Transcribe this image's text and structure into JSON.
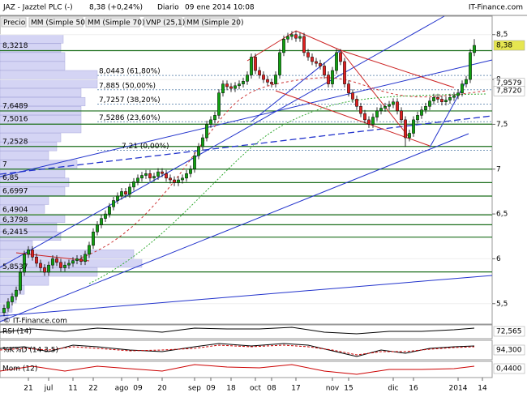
{
  "header": {
    "symbol": "JAZ - Jazztel PLC (-)",
    "quote": "8,38 (+0,24%)",
    "period": "Diario",
    "datetime": "09 ene 2014 10:08",
    "brand": "IT-Finance.com"
  },
  "legend": [
    {
      "name": "Precio",
      "color": "#555555"
    },
    {
      "name": "MM (Simple 50)",
      "color": "#555555"
    },
    {
      "name": "MM (Simple 70)",
      "color": "#2222cc"
    },
    {
      "name": "VNP (25,1)",
      "color": "#8888aa"
    },
    {
      "name": "MM (Simple 20)",
      "color": "#cc0000"
    }
  ],
  "watermark": "© IT-Finance.com",
  "chart_data": {
    "type": "candlestick",
    "categories": [
      null,
      null,
      null,
      null,
      null,
      null,
      "21",
      null,
      null,
      null,
      null,
      "jul",
      null,
      null,
      null,
      null,
      null,
      "11",
      null,
      null,
      null,
      null,
      "22",
      null,
      null,
      null,
      null,
      null,
      null,
      "ago",
      null,
      null,
      null,
      "09",
      null,
      null,
      null,
      null,
      null,
      "20",
      null,
      null,
      null,
      null,
      null,
      null,
      null,
      "sep",
      null,
      null,
      null,
      "09",
      null,
      null,
      null,
      null,
      "18",
      null,
      null,
      null,
      null,
      null,
      "oct",
      null,
      null,
      null,
      "08",
      null,
      null,
      null,
      null,
      null,
      "17",
      null,
      null,
      null,
      null,
      null,
      null,
      null,
      null,
      "nov",
      null,
      null,
      null,
      "15",
      null,
      null,
      null,
      null,
      null,
      null,
      null,
      null,
      null,
      null,
      "dic",
      null,
      null,
      null,
      null,
      "16",
      null,
      null,
      null,
      null,
      null,
      null,
      null,
      null,
      null,
      null,
      "2014",
      null,
      null,
      null,
      null,
      null,
      "14"
    ],
    "open": [
      5.4,
      5.45,
      5.52,
      5.58,
      5.65,
      5.85,
      6.05,
      6.1,
      6.02,
      5.95,
      5.9,
      5.85,
      5.93,
      6.0,
      5.96,
      5.9,
      5.93,
      5.95,
      5.98,
      6.0,
      5.97,
      6.05,
      6.15,
      6.3,
      6.38,
      6.45,
      6.5,
      6.58,
      6.65,
      6.7,
      6.75,
      6.72,
      6.8,
      6.86,
      6.9,
      6.93,
      6.95,
      6.9,
      6.92,
      6.97,
      6.95,
      6.9,
      6.88,
      6.85,
      6.88,
      6.9,
      6.95,
      7.0,
      7.15,
      7.25,
      7.35,
      7.5,
      7.55,
      7.6,
      7.85,
      7.95,
      7.92,
      7.9,
      7.93,
      7.95,
      7.98,
      8.05,
      8.25,
      8.1,
      8.05,
      8.0,
      7.97,
      7.95,
      8.05,
      8.3,
      8.45,
      8.48,
      8.5,
      8.46,
      8.48,
      8.3,
      8.25,
      8.2,
      8.18,
      8.15,
      8.05,
      7.95,
      8.1,
      8.3,
      8.2,
      7.95,
      7.85,
      7.78,
      7.7,
      7.62,
      7.55,
      7.5,
      7.58,
      7.65,
      7.68,
      7.7,
      7.72,
      7.75,
      7.65,
      7.55,
      7.35,
      7.4,
      7.55,
      7.6,
      7.66,
      7.7,
      7.76,
      7.8,
      7.78,
      7.75,
      7.77,
      7.8,
      7.82,
      7.85,
      7.95,
      8.0,
      8.3,
      null,
      null
    ],
    "high": [
      5.49,
      5.56,
      5.62,
      5.69,
      5.89,
      6.09,
      6.14,
      6.14,
      6.06,
      5.99,
      5.94,
      5.97,
      6.04,
      6.04,
      6.0,
      5.97,
      5.99,
      6.02,
      6.04,
      6.04,
      6.09,
      6.19,
      6.34,
      6.42,
      6.49,
      6.54,
      6.62,
      6.69,
      6.74,
      6.79,
      6.79,
      6.84,
      6.9,
      6.94,
      6.97,
      6.99,
      6.99,
      6.96,
      7.01,
      7.01,
      6.99,
      6.94,
      6.92,
      6.92,
      6.94,
      6.99,
      7.04,
      7.19,
      7.29,
      7.39,
      7.54,
      7.59,
      7.64,
      7.89,
      7.99,
      7.99,
      7.96,
      7.97,
      7.99,
      8.02,
      8.09,
      8.29,
      8.29,
      8.14,
      8.09,
      8.04,
      8.01,
      8.09,
      8.34,
      8.49,
      8.52,
      8.54,
      8.54,
      8.52,
      8.52,
      8.34,
      8.29,
      8.24,
      8.22,
      8.19,
      8.09,
      8.14,
      8.34,
      8.34,
      8.24,
      7.99,
      7.89,
      7.82,
      7.74,
      7.66,
      7.59,
      7.62,
      7.69,
      7.72,
      7.74,
      7.76,
      7.79,
      7.79,
      7.69,
      7.59,
      7.44,
      7.59,
      7.64,
      7.7,
      7.74,
      7.8,
      7.84,
      7.84,
      7.82,
      7.81,
      7.84,
      7.86,
      7.89,
      7.99,
      8.04,
      8.34,
      8.45,
      null,
      null
    ],
    "low": [
      5.36,
      5.41,
      5.48,
      5.54,
      5.61,
      5.81,
      6.01,
      5.98,
      5.91,
      5.86,
      5.81,
      5.81,
      5.89,
      5.92,
      5.86,
      5.86,
      5.89,
      5.91,
      5.94,
      5.93,
      5.93,
      6.01,
      6.11,
      6.26,
      6.34,
      6.41,
      6.46,
      6.54,
      6.61,
      6.66,
      6.68,
      6.68,
      6.76,
      6.82,
      6.86,
      6.89,
      6.86,
      6.86,
      6.88,
      6.91,
      6.86,
      6.84,
      6.81,
      6.81,
      6.84,
      6.86,
      6.91,
      6.96,
      7.11,
      7.21,
      7.31,
      7.46,
      7.51,
      7.56,
      7.81,
      7.88,
      7.86,
      7.86,
      7.89,
      7.91,
      7.94,
      8.01,
      8.06,
      8.01,
      7.96,
      7.93,
      7.91,
      7.91,
      8.01,
      8.26,
      8.41,
      8.44,
      8.42,
      8.42,
      8.26,
      8.21,
      8.16,
      8.14,
      8.11,
      8.01,
      7.91,
      7.91,
      8.06,
      8.16,
      7.91,
      7.81,
      7.74,
      7.66,
      7.58,
      7.51,
      7.46,
      7.46,
      7.54,
      7.61,
      7.64,
      7.66,
      7.68,
      7.61,
      7.51,
      7.25,
      7.31,
      7.36,
      7.51,
      7.56,
      7.62,
      7.66,
      7.72,
      7.74,
      7.71,
      7.71,
      7.73,
      7.76,
      7.78,
      7.81,
      7.91,
      7.96,
      8.26,
      null,
      null
    ],
    "close": [
      5.45,
      5.52,
      5.58,
      5.65,
      5.85,
      6.05,
      6.1,
      6.02,
      5.95,
      5.9,
      5.85,
      5.93,
      6.0,
      5.96,
      5.9,
      5.93,
      5.95,
      5.98,
      6.0,
      5.97,
      6.05,
      6.15,
      6.3,
      6.38,
      6.45,
      6.5,
      6.58,
      6.65,
      6.7,
      6.75,
      6.72,
      6.8,
      6.86,
      6.9,
      6.93,
      6.95,
      6.9,
      6.92,
      6.97,
      6.95,
      6.9,
      6.88,
      6.85,
      6.88,
      6.9,
      6.95,
      7.0,
      7.15,
      7.25,
      7.35,
      7.5,
      7.55,
      7.6,
      7.85,
      7.95,
      7.92,
      7.9,
      7.93,
      7.95,
      7.98,
      8.05,
      8.25,
      8.1,
      8.05,
      8.0,
      7.97,
      7.95,
      8.05,
      8.3,
      8.45,
      8.48,
      8.5,
      8.46,
      8.48,
      8.3,
      8.25,
      8.2,
      8.18,
      8.15,
      8.05,
      7.95,
      8.1,
      8.3,
      8.2,
      7.95,
      7.85,
      7.78,
      7.7,
      7.62,
      7.55,
      7.5,
      7.58,
      7.65,
      7.68,
      7.7,
      7.72,
      7.75,
      7.65,
      7.55,
      7.35,
      7.4,
      7.55,
      7.6,
      7.66,
      7.7,
      7.76,
      7.8,
      7.78,
      7.75,
      7.77,
      7.8,
      7.82,
      7.85,
      7.95,
      8.0,
      8.3,
      8.38,
      null,
      null
    ],
    "up_color": "#10a010",
    "down_color": "#e02020",
    "ylim": [
      5.29,
      8.57
    ],
    "yticks": [
      {
        "value": 8.5,
        "label": "8,5"
      },
      8,
      {
        "value": 7.5,
        "label": "7,5"
      },
      7,
      {
        "value": 6.5,
        "label": "6,5"
      },
      6,
      {
        "value": 5.5,
        "label": "5,5"
      }
    ],
    "levels": [
      {
        "value": 8.3218,
        "label": "8,3218"
      },
      {
        "value": 7.6489,
        "label": "7,6489"
      },
      {
        "value": 7.5016,
        "label": "7,5016"
      },
      {
        "value": 7.2528,
        "label": "7,2528"
      },
      7,
      {
        "value": 6.85,
        "label": "6,85"
      },
      {
        "value": 6.6997,
        "label": "6,6997"
      },
      {
        "value": 6.4904,
        "label": "6,4904"
      },
      {
        "value": 6.3798,
        "label": "6,3798"
      },
      {
        "value": 6.2415,
        "label": "6,2415"
      },
      {
        "value": 5.8537,
        "label": "5,8537"
      }
    ],
    "fibonacci": [
      {
        "value": 8.0443,
        "label": "8,0443 (61,80%)"
      },
      {
        "value": 7.885,
        "label": "7,885 (50,00%)"
      },
      {
        "value": 7.7257,
        "label": "7,7257 (38,20%)"
      },
      {
        "value": 7.5286,
        "label": "7,5286 (23,60%)"
      },
      {
        "value": 7.21,
        "label": "7,21 (0,00%)"
      }
    ],
    "price_tags": [
      {
        "value": 8.38,
        "label": "8,38",
        "color": "#000000",
        "background": "#e6e650"
      },
      {
        "value": 7.9579,
        "label": "7,9579",
        "color": "#000000",
        "background": "#ffffff"
      },
      {
        "value": 7.872,
        "label": "7,8720",
        "color": "#cc0000",
        "background": "#ffffff"
      }
    ],
    "volume_profile": {
      "bins": [
        5.3,
        5.4,
        5.5,
        5.6,
        5.7,
        5.8,
        5.9,
        6.0,
        6.1,
        6.2,
        6.3,
        6.4,
        6.5,
        6.6,
        6.7,
        6.8,
        6.9,
        7.0,
        7.1,
        7.2,
        7.3,
        7.4,
        7.5,
        7.6,
        7.7,
        7.8,
        7.9,
        8.0,
        8.1,
        8.2,
        8.3,
        8.4,
        8.5
      ],
      "values": [
        10,
        15,
        20,
        30,
        60,
        120,
        175,
        165,
        40,
        75,
        70,
        80,
        55,
        60,
        80,
        85,
        80,
        95,
        60,
        70,
        75,
        100,
        100,
        100,
        105,
        100,
        120,
        120,
        80,
        80,
        75,
        78
      ],
      "color": "#d4d4f4"
    },
    "indicators": [
      {
        "name": "RSI (14)",
        "color": "#000000",
        "value": 72.565,
        "label": "72,565"
      },
      {
        "name": "%K",
        "color": "#000000",
        "value": 94.3,
        "label": "94,300",
        "extra": "%D (14 3 5)",
        "extra_color": "#cc0000"
      },
      {
        "name": "Mom (12)",
        "color": "#cc0000",
        "value": 0.44,
        "label": "0,4400"
      }
    ]
  }
}
